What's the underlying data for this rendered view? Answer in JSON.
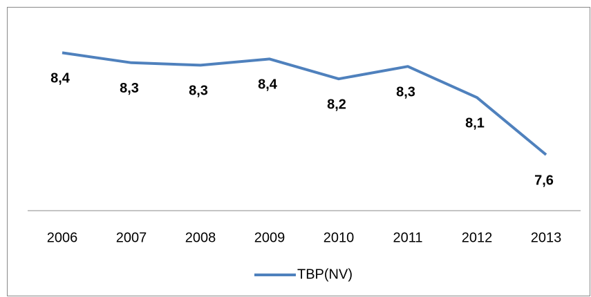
{
  "chart_data": {
    "type": "line",
    "categories": [
      "2006",
      "2007",
      "2008",
      "2009",
      "2010",
      "2011",
      "2012",
      "2013"
    ],
    "series": [
      {
        "name": "TBP(NV)",
        "color": "#4f81bd",
        "values": [
          8.42,
          8.34,
          8.32,
          8.37,
          8.21,
          8.31,
          8.06,
          7.6
        ],
        "value_labels": [
          "8,4",
          "8,3",
          "8,3",
          "8,4",
          "8,2",
          "8,3",
          "8,1",
          "7,6"
        ]
      }
    ],
    "ylim": [
      7.15,
      8.6
    ],
    "legend": "bottom"
  }
}
